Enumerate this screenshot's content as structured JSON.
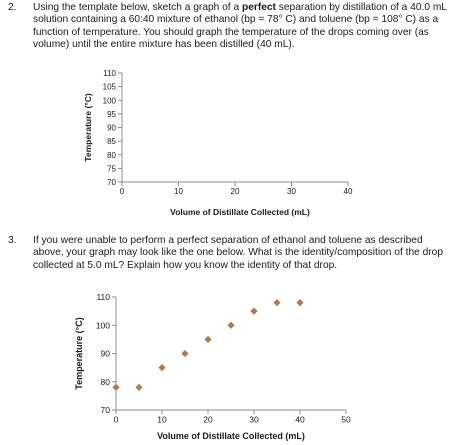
{
  "question2": {
    "number": "2.",
    "text_before_bold": "Using the template below, sketch a graph of a ",
    "bold": "perfect",
    "text_after_bold": " separation by distillation of a 40.0 mL solution containing a 60:40 mixture of ethanol (bp = 78° C) and toluene (bp = 108° C) as a function of temperature.  You should graph the temperature of the drops coming over (as volume) until the entire mixture has been distilled (40 mL)."
  },
  "question3": {
    "number": "3.",
    "text": "If you were unable to perform a perfect separation of ethanol and toluene as described above, your graph may look like the one below. What is the identity/composition of the drop collected at 5.0 mL? Explain how you know the identity of that drop."
  },
  "chart_data": [
    {
      "type": "scatter",
      "title": "",
      "xlabel": "Volume of Distillate Collected (mL)",
      "ylabel": "Temperature (°C)",
      "xlim": [
        0,
        40
      ],
      "ylim": [
        70,
        110
      ],
      "x_ticks": [
        "0",
        "10",
        "20",
        "30",
        "40"
      ],
      "y_ticks": [
        "70",
        "75",
        "80",
        "85",
        "90",
        "95",
        "100",
        "105",
        "110"
      ],
      "series": [],
      "grid": false
    },
    {
      "type": "scatter",
      "title": "",
      "xlabel": "Volume of Distillate Collected (mL)",
      "ylabel": "Temperature (°C)",
      "xlim": [
        0,
        50
      ],
      "ylim": [
        70,
        110
      ],
      "x_ticks": [
        "0",
        "10",
        "20",
        "30",
        "40",
        "50"
      ],
      "y_ticks": [
        "70",
        "80",
        "90",
        "100",
        "110"
      ],
      "series": [
        {
          "x": [
            0,
            5,
            10,
            15,
            20,
            25,
            30,
            35,
            40
          ],
          "y": [
            78,
            78,
            85,
            90,
            95,
            100,
            105,
            108,
            108
          ]
        }
      ],
      "marker_color": "#b07a4a",
      "grid": false
    }
  ]
}
